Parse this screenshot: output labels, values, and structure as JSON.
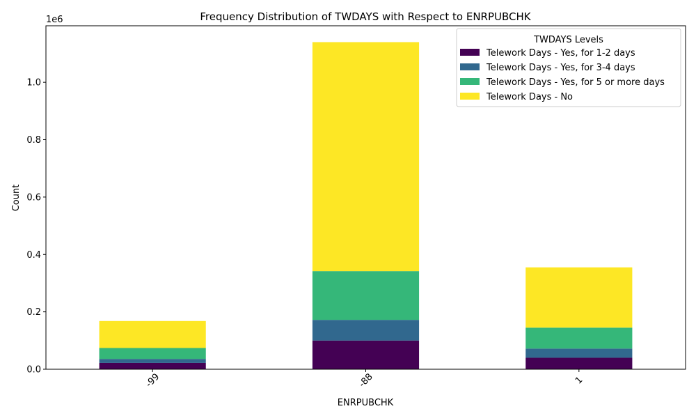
{
  "chart_data": {
    "type": "bar",
    "stacked": true,
    "title": "Frequency Distribution of TWDAYS with Respect to ENRPUBCHK",
    "xlabel": "ENRPUBCHK",
    "ylabel": "Count",
    "y_offset_text": "1e6",
    "categories": [
      "-99",
      "-88",
      "1"
    ],
    "series": [
      {
        "name": "Telework Days - Yes, for 1-2 days",
        "color": "#440154",
        "values": [
          22000,
          100000,
          40000
        ]
      },
      {
        "name": "Telework Days - Yes, for 3-4 days",
        "color": "#31688e",
        "values": [
          14000,
          72000,
          32000
        ]
      },
      {
        "name": "Telework Days - Yes, for 5 or more days",
        "color": "#35b779",
        "values": [
          38000,
          170000,
          73000
        ]
      },
      {
        "name": "Telework Days - No",
        "color": "#fde725",
        "values": [
          94000,
          798000,
          210000
        ]
      }
    ],
    "ylim": [
      0,
      1197000
    ],
    "yticks": [
      0,
      200000,
      400000,
      600000,
      800000,
      1000000
    ],
    "ytick_labels": [
      "0.0",
      "0.2",
      "0.4",
      "0.6",
      "0.8",
      "1.0"
    ],
    "x_tick_rotation": 45,
    "legend": {
      "title": "TWDAYS Levels",
      "position": "top-right"
    },
    "grid": false
  }
}
